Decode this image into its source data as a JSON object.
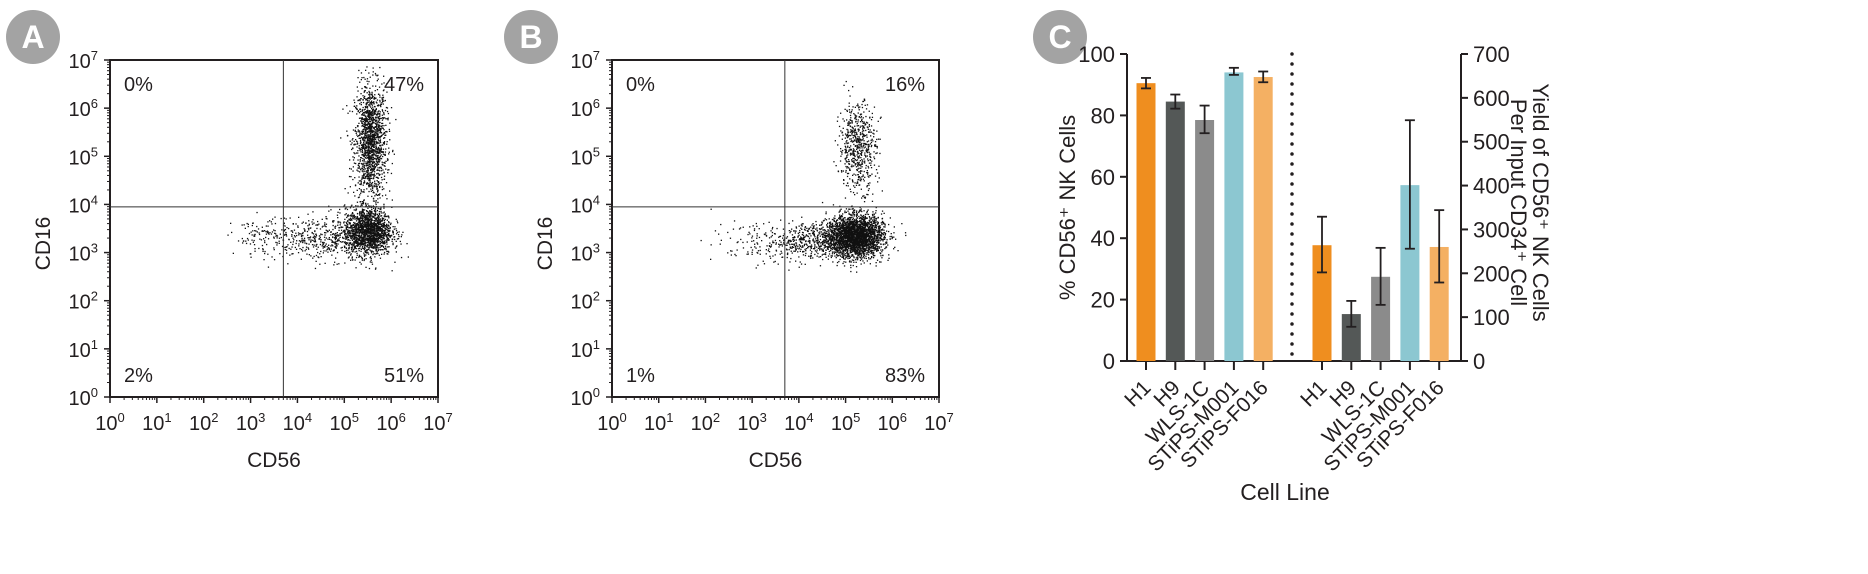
{
  "colors": {
    "badge": "#a3a3a3",
    "axis": "#231f20",
    "H1": "#ef8e1f",
    "H9": "#545857",
    "WLS-1C": "#8b8b8b",
    "STiPS-M001": "#8cc7d1",
    "STiPS-F016": "#f4b063"
  },
  "chart_data": [
    {
      "panel": "A",
      "type": "scatter",
      "xlabel": "CD56",
      "ylabel": "CD16",
      "xscale": "log10",
      "yscale": "log10",
      "xlim_exp": [
        0,
        7
      ],
      "ylim_exp": [
        0,
        7
      ],
      "tick_base": "10",
      "tick_exponents": [
        "0",
        "1",
        "2",
        "3",
        "4",
        "5",
        "6",
        "7"
      ],
      "gate_log": {
        "x": 3.7,
        "y": 3.95
      },
      "quadrants": {
        "top_left": "0%",
        "top_right": "47%",
        "bottom_left": "2%",
        "bottom_right": "51%"
      },
      "populations_log": [
        {
          "mx": 5.55,
          "my": 5.3,
          "sx": 0.17,
          "sy": 0.6,
          "n": 1500
        },
        {
          "mx": 5.5,
          "my": 3.45,
          "sx": 0.25,
          "sy": 0.25,
          "n": 1500
        },
        {
          "mx": 4.6,
          "my": 3.3,
          "sx": 0.55,
          "sy": 0.22,
          "n": 450
        },
        {
          "mx": 3.3,
          "my": 3.35,
          "sx": 0.35,
          "sy": 0.2,
          "n": 120
        }
      ]
    },
    {
      "panel": "B",
      "type": "scatter",
      "xlabel": "CD56",
      "ylabel": "CD16",
      "xscale": "log10",
      "yscale": "log10",
      "xlim_exp": [
        0,
        7
      ],
      "ylim_exp": [
        0,
        7
      ],
      "tick_base": "10",
      "tick_exponents": [
        "0",
        "1",
        "2",
        "3",
        "4",
        "5",
        "6",
        "7"
      ],
      "gate_log": {
        "x": 3.7,
        "y": 3.95
      },
      "quadrants": {
        "top_left": "0%",
        "top_right": "16%",
        "bottom_left": "1%",
        "bottom_right": "83%"
      },
      "populations_log": [
        {
          "mx": 5.25,
          "my": 5.2,
          "sx": 0.2,
          "sy": 0.45,
          "n": 600
        },
        {
          "mx": 5.2,
          "my": 3.35,
          "sx": 0.3,
          "sy": 0.22,
          "n": 2600
        },
        {
          "mx": 4.3,
          "my": 3.25,
          "sx": 0.5,
          "sy": 0.2,
          "n": 500
        },
        {
          "mx": 3.0,
          "my": 3.2,
          "sx": 0.45,
          "sy": 0.2,
          "n": 90
        }
      ]
    },
    {
      "panel": "C",
      "type": "bar",
      "xlabel": "Cell Line",
      "ylabel_left": "% CD56⁺ NK Cells",
      "ylabel_right_line1": "Yield of CD56⁺ NK Cells",
      "ylabel_right_line2": "Per Input CD34⁺ Cell",
      "ylim_left": [
        0,
        100
      ],
      "ylim_right": [
        0,
        700
      ],
      "yticks_left": [
        "0",
        "20",
        "40",
        "60",
        "80",
        "100"
      ],
      "yticks_right": [
        "0",
        "100",
        "200",
        "300",
        "400",
        "500",
        "600",
        "700"
      ],
      "categories": [
        "H1",
        "H9",
        "WLS-1C",
        "STiPS-M001",
        "STiPS-F016"
      ],
      "series": [
        {
          "name": "% CD56+ NK Cells",
          "axis": "left",
          "values": [
            90.5,
            84.5,
            78.5,
            94,
            92.5
          ],
          "err_low": [
            88.8,
            82.2,
            74.2,
            93.2,
            90.8
          ],
          "err_high": [
            92.2,
            86.8,
            83.2,
            95.5,
            94.3
          ]
        },
        {
          "name": "Yield per input CD34+ cell",
          "axis": "right",
          "values": [
            264,
            107,
            192,
            401,
            260
          ],
          "err_low": [
            202,
            78,
            128,
            256,
            179
          ],
          "err_high": [
            329,
            137,
            258,
            549,
            344
          ]
        }
      ]
    }
  ]
}
